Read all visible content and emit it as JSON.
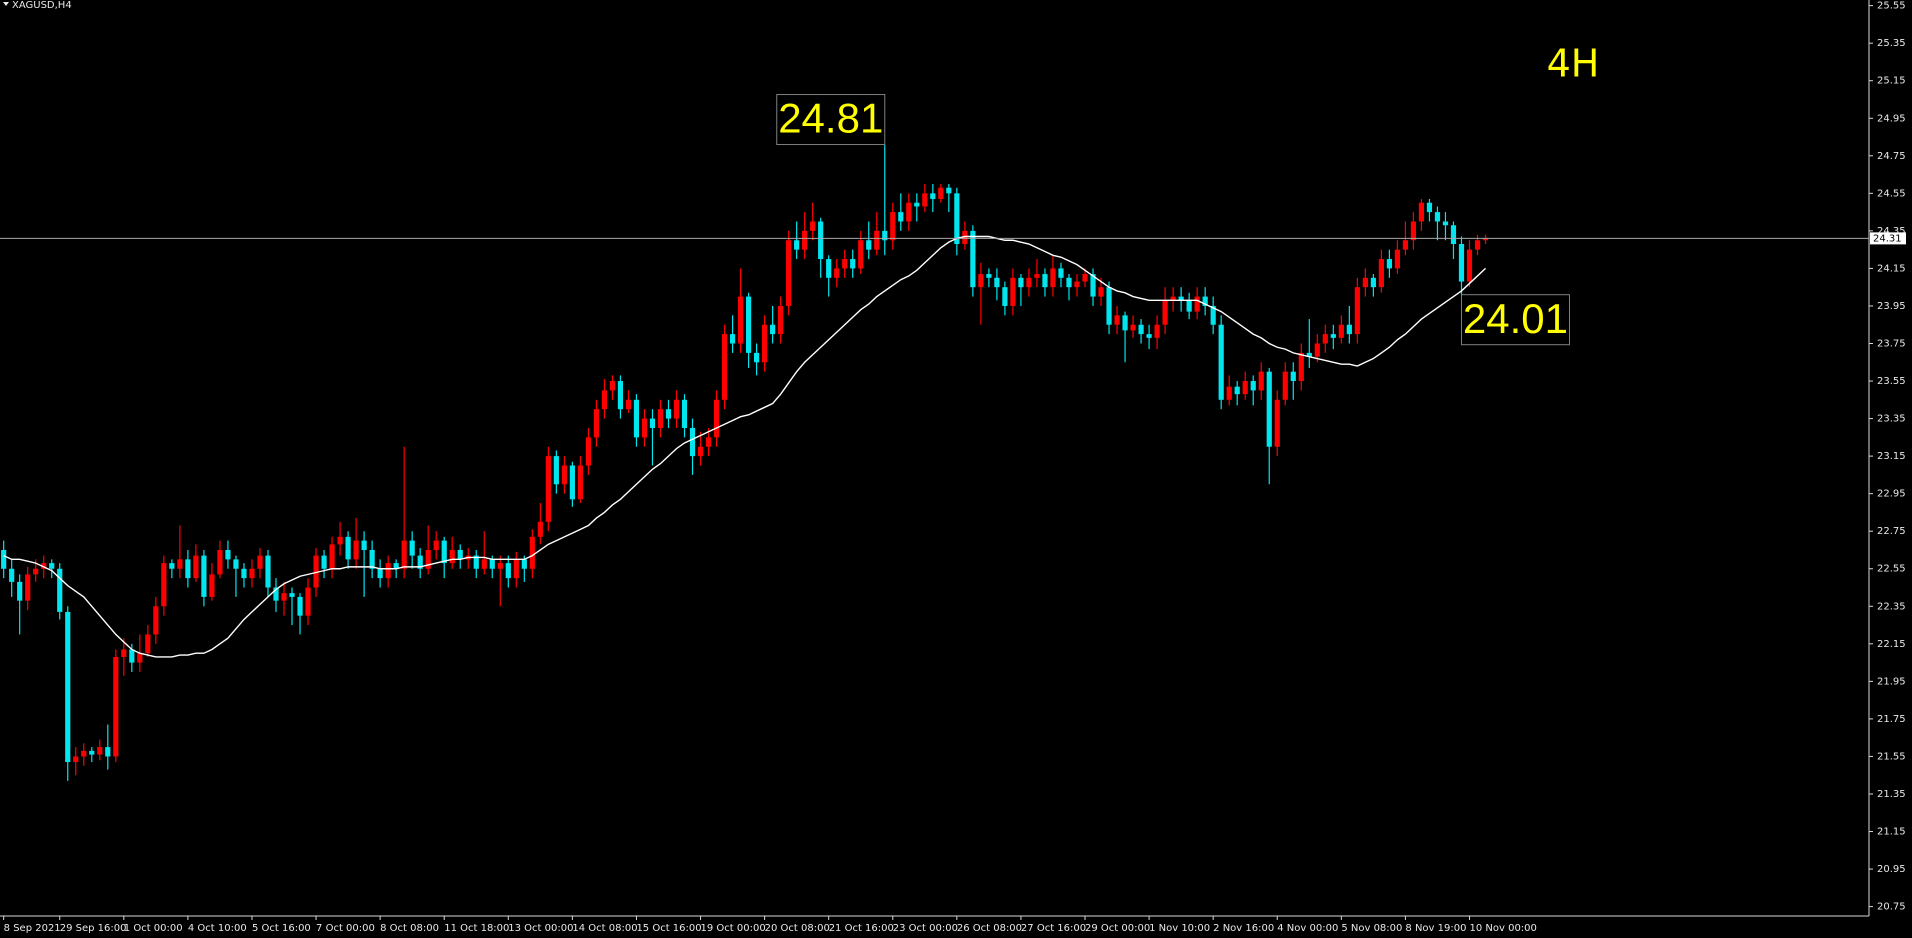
{
  "chart_data": {
    "type": "candlestick",
    "title": "XAGUSD,H4",
    "label": "4H",
    "up_color": "#ff0000",
    "down_color": "#00e5ee",
    "ma_color": "#ffffff",
    "last_price": 24.31,
    "annotations": [
      24.81,
      24.01
    ],
    "ylim": [
      20.7,
      25.58
    ],
    "yticks": [
      25.55,
      25.35,
      25.15,
      24.95,
      24.75,
      24.55,
      24.35,
      24.15,
      23.95,
      23.75,
      23.55,
      23.35,
      23.15,
      22.95,
      22.75,
      22.55,
      22.35,
      22.15,
      21.95,
      21.75,
      21.55,
      21.35,
      21.15,
      20.95,
      20.75
    ],
    "categories": [
      "8 Sep 2021",
      null,
      null,
      null,
      null,
      null,
      null,
      "29 Sep 16:00",
      null,
      null,
      null,
      null,
      null,
      null,
      null,
      "1 Oct 00:00",
      null,
      null,
      null,
      null,
      null,
      null,
      null,
      "4 Oct 10:00",
      null,
      null,
      null,
      null,
      null,
      null,
      null,
      "5 Oct 16:00",
      null,
      null,
      null,
      null,
      null,
      null,
      null,
      "7 Oct 00:00",
      null,
      null,
      null,
      null,
      null,
      null,
      null,
      "8 Oct 08:00",
      null,
      null,
      null,
      null,
      null,
      null,
      null,
      "11 Oct 18:00",
      null,
      null,
      null,
      null,
      null,
      null,
      null,
      "13 Oct 00:00",
      null,
      null,
      null,
      null,
      null,
      null,
      null,
      "14 Oct 08:00",
      null,
      null,
      null,
      null,
      null,
      null,
      null,
      "15 Oct 16:00",
      null,
      null,
      null,
      null,
      null,
      null,
      null,
      "19 Oct 00:00",
      null,
      null,
      null,
      null,
      null,
      null,
      null,
      "20 Oct 08:00",
      null,
      null,
      null,
      null,
      null,
      null,
      null,
      "21 Oct 16:00",
      null,
      null,
      null,
      null,
      null,
      null,
      null,
      "23 Oct 00:00",
      null,
      null,
      null,
      null,
      null,
      null,
      null,
      "26 Oct 08:00",
      null,
      null,
      null,
      null,
      null,
      null,
      null,
      "27 Oct 16:00",
      null,
      null,
      null,
      null,
      null,
      null,
      null,
      "29 Oct 00:00",
      null,
      null,
      null,
      null,
      null,
      null,
      null,
      "1 Nov 10:00",
      null,
      null,
      null,
      null,
      null,
      null,
      null,
      "2 Nov 16:00",
      null,
      null,
      null,
      null,
      null,
      null,
      null,
      "4 Nov 00:00",
      null,
      null,
      null,
      null,
      null,
      null,
      null,
      "5 Nov 08:00",
      null,
      null,
      null,
      null,
      null,
      null,
      null,
      "8 Nov 19:00",
      null,
      null,
      null,
      null,
      null,
      null,
      null,
      "10 Nov 00:00",
      null,
      null
    ],
    "open": [
      22.65,
      22.55,
      22.48,
      22.38,
      22.52,
      22.55,
      22.58,
      22.55,
      22.32,
      21.52,
      21.55,
      21.58,
      21.56,
      21.6,
      21.55,
      22.08,
      22.12,
      22.05,
      22.1,
      22.2,
      22.35,
      22.58,
      22.55,
      22.6,
      22.5,
      22.62,
      22.4,
      22.52,
      22.65,
      22.6,
      22.55,
      22.5,
      22.55,
      22.62,
      22.45,
      22.38,
      22.42,
      22.4,
      22.3,
      22.45,
      22.62,
      22.55,
      22.68,
      22.72,
      22.6,
      22.7,
      22.65,
      22.55,
      22.5,
      22.58,
      22.55,
      22.7,
      22.62,
      22.55,
      22.65,
      22.7,
      22.58,
      22.65,
      22.6,
      22.62,
      22.55,
      22.6,
      22.55,
      22.58,
      22.5,
      22.6,
      22.55,
      22.72,
      22.8,
      23.15,
      23.0,
      23.1,
      22.92,
      23.1,
      23.25,
      23.4,
      23.5,
      23.55,
      23.4,
      23.45,
      23.25,
      23.35,
      23.3,
      23.4,
      23.35,
      23.45,
      23.3,
      23.15,
      23.2,
      23.25,
      23.45,
      23.8,
      23.75,
      24.0,
      23.7,
      23.65,
      23.85,
      23.8,
      23.95,
      24.3,
      24.25,
      24.35,
      24.4,
      24.2,
      24.1,
      24.15,
      24.2,
      24.15,
      24.3,
      24.25,
      24.35,
      24.3,
      24.45,
      24.4,
      24.5,
      24.48,
      24.55,
      24.52,
      24.58,
      24.55,
      24.28,
      24.35,
      24.05,
      24.12,
      24.1,
      24.05,
      23.95,
      24.1,
      24.05,
      24.1,
      24.12,
      24.05,
      24.15,
      24.1,
      24.05,
      24.08,
      24.12,
      24.0,
      24.05,
      23.85,
      23.9,
      23.82,
      23.85,
      23.8,
      23.78,
      23.85,
      23.98,
      24.0,
      23.98,
      23.92,
      24.0,
      23.95,
      23.85,
      23.45,
      23.52,
      23.48,
      23.55,
      23.5,
      23.6,
      23.2,
      23.45,
      23.6,
      23.55,
      23.7,
      23.68,
      23.75,
      23.8,
      23.78,
      23.85,
      23.8,
      24.05,
      24.1,
      24.05,
      24.2,
      24.15,
      24.25,
      24.3,
      24.4,
      24.5,
      24.45,
      24.4,
      24.38,
      24.28,
      24.08,
      24.25,
      24.3
    ],
    "high": [
      22.7,
      22.6,
      22.52,
      22.56,
      22.6,
      22.62,
      22.6,
      22.58,
      22.35,
      21.6,
      21.62,
      21.6,
      21.64,
      21.72,
      22.12,
      22.18,
      22.15,
      22.2,
      22.25,
      22.4,
      22.62,
      22.6,
      22.78,
      22.65,
      22.68,
      22.65,
      22.58,
      22.7,
      22.7,
      22.62,
      22.58,
      22.6,
      22.66,
      22.65,
      22.5,
      22.48,
      22.45,
      22.42,
      22.5,
      22.66,
      22.65,
      22.72,
      22.8,
      22.75,
      22.82,
      22.75,
      22.7,
      22.6,
      22.62,
      22.6,
      23.2,
      22.75,
      22.66,
      22.78,
      22.75,
      22.72,
      22.72,
      22.68,
      22.66,
      22.65,
      22.75,
      22.62,
      22.62,
      22.62,
      22.64,
      22.62,
      22.76,
      22.9,
      23.2,
      23.18,
      23.15,
      23.12,
      23.15,
      23.3,
      23.45,
      23.56,
      23.58,
      23.58,
      23.5,
      23.48,
      23.4,
      23.4,
      23.45,
      23.45,
      23.5,
      23.48,
      23.35,
      23.28,
      23.3,
      23.5,
      23.85,
      23.9,
      24.15,
      24.02,
      23.75,
      23.9,
      23.95,
      24.0,
      24.35,
      24.4,
      24.45,
      24.5,
      24.42,
      24.22,
      24.2,
      24.25,
      24.25,
      24.35,
      24.4,
      24.45,
      24.81,
      24.5,
      24.55,
      24.55,
      24.55,
      24.6,
      24.6,
      24.6,
      24.6,
      24.58,
      24.4,
      24.38,
      24.18,
      24.15,
      24.15,
      24.08,
      24.15,
      24.12,
      24.15,
      24.2,
      24.15,
      24.22,
      24.18,
      24.12,
      24.12,
      24.15,
      24.15,
      24.1,
      24.08,
      23.95,
      23.92,
      23.9,
      23.88,
      23.85,
      23.9,
      24.05,
      24.05,
      24.05,
      24.02,
      24.05,
      24.05,
      24.0,
      23.9,
      23.58,
      23.55,
      23.6,
      23.58,
      23.65,
      23.62,
      23.5,
      23.65,
      23.65,
      23.75,
      23.88,
      23.8,
      23.85,
      23.85,
      23.9,
      23.95,
      24.1,
      24.15,
      24.12,
      24.25,
      24.25,
      24.3,
      24.4,
      24.45,
      24.52,
      24.52,
      24.48,
      24.45,
      24.4,
      24.32,
      24.3,
      24.33,
      24.33
    ],
    "low": [
      22.5,
      22.4,
      22.2,
      22.33,
      22.48,
      22.5,
      22.5,
      22.28,
      21.42,
      21.45,
      21.5,
      21.52,
      21.53,
      21.48,
      21.52,
      21.98,
      22.0,
      22.0,
      22.08,
      22.15,
      22.3,
      22.5,
      22.5,
      22.45,
      22.48,
      22.35,
      22.38,
      22.5,
      22.55,
      22.4,
      22.45,
      22.45,
      22.5,
      22.4,
      22.32,
      22.3,
      22.25,
      22.2,
      22.25,
      22.4,
      22.5,
      22.5,
      22.62,
      22.55,
      22.55,
      22.4,
      22.5,
      22.45,
      22.45,
      22.5,
      22.5,
      22.55,
      22.5,
      22.52,
      22.6,
      22.5,
      22.55,
      22.55,
      22.55,
      22.5,
      22.52,
      22.5,
      22.35,
      22.45,
      22.45,
      22.48,
      22.5,
      22.68,
      22.75,
      22.95,
      22.95,
      22.88,
      22.9,
      23.05,
      23.2,
      23.35,
      23.45,
      23.35,
      23.38,
      23.2,
      23.2,
      23.1,
      23.25,
      23.3,
      23.3,
      23.25,
      23.05,
      23.1,
      23.15,
      23.2,
      23.4,
      23.7,
      23.7,
      23.62,
      23.58,
      23.6,
      23.75,
      23.75,
      23.9,
      24.2,
      24.2,
      24.3,
      24.1,
      24.0,
      24.05,
      24.1,
      24.1,
      24.12,
      24.2,
      24.22,
      24.22,
      24.25,
      24.35,
      24.35,
      24.4,
      24.45,
      24.45,
      24.5,
      24.45,
      24.22,
      24.25,
      24.0,
      23.85,
      24.05,
      23.98,
      23.9,
      23.9,
      23.95,
      24.0,
      24.05,
      24.0,
      24.0,
      24.05,
      23.98,
      24.0,
      24.05,
      23.95,
      23.95,
      23.8,
      23.8,
      23.65,
      23.78,
      23.75,
      23.72,
      23.72,
      23.8,
      23.92,
      23.92,
      23.88,
      23.88,
      23.9,
      23.8,
      23.4,
      23.42,
      23.42,
      23.45,
      23.42,
      23.45,
      23.0,
      23.15,
      23.42,
      23.45,
      23.5,
      23.62,
      23.65,
      23.7,
      23.72,
      23.75,
      23.75,
      23.75,
      24.0,
      24.0,
      24.02,
      24.1,
      24.12,
      24.22,
      24.25,
      24.35,
      24.4,
      24.3,
      24.3,
      24.2,
      24.01,
      24.05,
      24.22,
      24.28
    ],
    "close": [
      22.55,
      22.48,
      22.38,
      22.52,
      22.55,
      22.58,
      22.55,
      22.32,
      21.52,
      21.55,
      21.58,
      21.56,
      21.6,
      21.55,
      22.08,
      22.12,
      22.05,
      22.1,
      22.2,
      22.35,
      22.58,
      22.55,
      22.6,
      22.5,
      22.62,
      22.4,
      22.52,
      22.65,
      22.6,
      22.55,
      22.5,
      22.55,
      22.62,
      22.45,
      22.38,
      22.42,
      22.4,
      22.3,
      22.45,
      22.62,
      22.55,
      22.68,
      22.72,
      22.6,
      22.7,
      22.65,
      22.55,
      22.5,
      22.58,
      22.55,
      22.7,
      22.62,
      22.55,
      22.65,
      22.7,
      22.58,
      22.65,
      22.6,
      22.62,
      22.55,
      22.6,
      22.55,
      22.58,
      22.5,
      22.6,
      22.55,
      22.72,
      22.8,
      23.15,
      23.0,
      23.1,
      22.92,
      23.1,
      23.25,
      23.4,
      23.5,
      23.55,
      23.4,
      23.45,
      23.25,
      23.35,
      23.3,
      23.4,
      23.35,
      23.45,
      23.3,
      23.15,
      23.2,
      23.25,
      23.45,
      23.8,
      23.75,
      24.0,
      23.7,
      23.65,
      23.85,
      23.8,
      23.95,
      24.3,
      24.25,
      24.35,
      24.4,
      24.2,
      24.1,
      24.15,
      24.2,
      24.15,
      24.3,
      24.25,
      24.35,
      24.3,
      24.45,
      24.4,
      24.5,
      24.48,
      24.55,
      24.52,
      24.58,
      24.55,
      24.28,
      24.35,
      24.05,
      24.12,
      24.1,
      24.05,
      23.95,
      24.1,
      24.05,
      24.1,
      24.12,
      24.05,
      24.15,
      24.1,
      24.05,
      24.08,
      24.12,
      24.0,
      24.05,
      23.85,
      23.9,
      23.82,
      23.85,
      23.8,
      23.78,
      23.85,
      23.98,
      24.0,
      23.98,
      23.92,
      24.0,
      23.95,
      23.85,
      23.45,
      23.52,
      23.48,
      23.55,
      23.5,
      23.6,
      23.2,
      23.45,
      23.6,
      23.55,
      23.7,
      23.68,
      23.75,
      23.8,
      23.78,
      23.85,
      23.8,
      24.05,
      24.1,
      24.05,
      24.2,
      24.15,
      24.25,
      24.3,
      24.4,
      24.5,
      24.45,
      24.4,
      24.38,
      24.28,
      24.08,
      24.25,
      24.3,
      24.31
    ],
    "moving_average": [
      22.62,
      22.6,
      22.6,
      22.59,
      22.58,
      22.56,
      22.54,
      22.5,
      22.46,
      22.43,
      22.4,
      22.35,
      22.3,
      22.25,
      22.2,
      22.16,
      22.12,
      22.1,
      22.09,
      22.08,
      22.08,
      22.08,
      22.09,
      22.09,
      22.1,
      22.1,
      22.12,
      22.15,
      22.18,
      22.23,
      22.28,
      22.32,
      22.36,
      22.4,
      22.44,
      22.47,
      22.49,
      22.51,
      22.52,
      22.53,
      22.54,
      22.55,
      22.55,
      22.56,
      22.56,
      22.56,
      22.56,
      22.55,
      22.55,
      22.55,
      22.56,
      22.56,
      22.56,
      22.57,
      22.58,
      22.59,
      22.6,
      22.6,
      22.61,
      22.61,
      22.61,
      22.6,
      22.6,
      22.6,
      22.6,
      22.6,
      22.62,
      22.65,
      22.68,
      22.7,
      22.72,
      22.74,
      22.76,
      22.78,
      22.82,
      22.85,
      22.89,
      22.92,
      22.96,
      23.0,
      23.04,
      23.08,
      23.11,
      23.15,
      23.19,
      23.22,
      23.24,
      23.26,
      23.28,
      23.3,
      23.32,
      23.34,
      23.36,
      23.37,
      23.39,
      23.41,
      23.43,
      23.48,
      23.54,
      23.6,
      23.65,
      23.69,
      23.73,
      23.77,
      23.81,
      23.85,
      23.89,
      23.93,
      23.96,
      24.0,
      24.03,
      24.06,
      24.09,
      24.11,
      24.14,
      24.18,
      24.22,
      24.26,
      24.29,
      24.31,
      24.32,
      24.32,
      24.32,
      24.32,
      24.31,
      24.3,
      24.3,
      24.29,
      24.28,
      24.26,
      24.24,
      24.22,
      24.21,
      24.19,
      24.17,
      24.14,
      24.11,
      24.08,
      24.05,
      24.03,
      24.02,
      24.0,
      23.99,
      23.98,
      23.98,
      23.98,
      23.98,
      23.98,
      23.98,
      23.98,
      23.96,
      23.94,
      23.92,
      23.89,
      23.86,
      23.83,
      23.8,
      23.78,
      23.75,
      23.73,
      23.72,
      23.7,
      23.69,
      23.68,
      23.67,
      23.66,
      23.65,
      23.64,
      23.64,
      23.63,
      23.65,
      23.67,
      23.7,
      23.73,
      23.77,
      23.8,
      23.84,
      23.88,
      23.91,
      23.94,
      23.97,
      24.0,
      24.03,
      24.07,
      24.11,
      24.15
    ]
  }
}
